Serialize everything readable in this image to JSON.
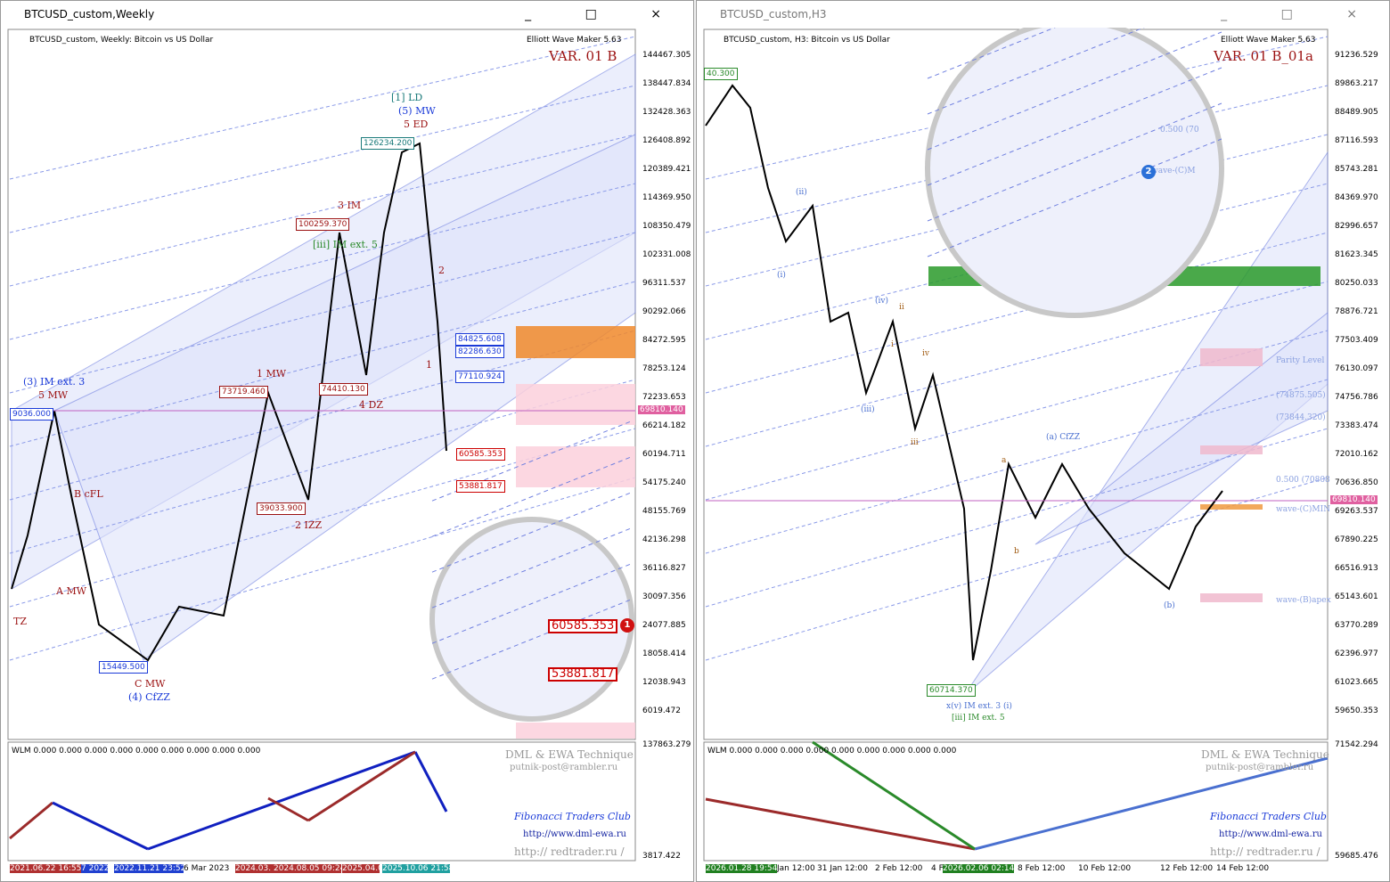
{
  "windows": [
    {
      "title": "BTCUSD_custom,Weekly",
      "header": "BTCUSD_custom, Weekly:  Bitcoin vs US Dollar",
      "tool": "Elliott Wave Maker 5.63",
      "variant": "VAR. 01 B",
      "price_axis": [
        "144467.305",
        "138447.834",
        "132428.363",
        "126408.892",
        "120389.421",
        "114369.950",
        "108350.479",
        "102331.008",
        "96311.537",
        "90292.066",
        "84272.595",
        "78253.124",
        "72233.653",
        "66214.182",
        "60194.711",
        "54175.240",
        "48155.769",
        "42136.298",
        "36116.827",
        "30097.356",
        "24077.885",
        "18058.414",
        "12038.943",
        "6019.472"
      ],
      "current_price": "69810.140",
      "indicator_text": "WLM 0.000 0.000 0.000 0.000 0.000 0.000 0.000 0.000 0.000",
      "indicator_axis": [
        "137863.279",
        "3817.422"
      ],
      "credits": [
        "DML & EWA Technique",
        "putnik-post@rambler.ru",
        "Fibonacci    Traders    Club",
        "http://www.dml-ewa.ru",
        "http://  redtrader.ru  /"
      ],
      "time_axis": [
        "2021.06.22 16:55",
        "7 2022",
        "2022.11.21 23:52",
        "6 Mar 2023",
        "2024.03.",
        "2024.08.05 09:24",
        "2025.04.07",
        "2025.10.06 21:58"
      ],
      "wave_labels": [
        "[1] LD",
        "(5) MW",
        "5 ED",
        "3 IM",
        "[iii] IM ext. 5",
        "1 MW",
        "4 DZ",
        "2 IZZ",
        "(3) IM ext. 3",
        "5 MW",
        "B cFL",
        "A MW",
        "TZ",
        "C MW",
        "(4) CfZZ",
        "2",
        "1"
      ],
      "price_boxes": [
        "126234.200",
        "100259.370",
        "73719.460",
        "74410.130",
        "39033.900",
        "15449.500",
        "84825.608",
        "82286.630",
        "77110.924",
        "60585.353",
        "53881.817",
        "9036.000"
      ],
      "zoom_labels": [
        "60585.353",
        "53881.817"
      ],
      "marker": "1"
    },
    {
      "title": "BTCUSD_custom,H3",
      "header": "BTCUSD_custom, H3:  Bitcoin vs US Dollar",
      "tool": "Elliott Wave Maker 5.63",
      "variant": "VAR. 01 B_01a",
      "price_axis": [
        "91236.529",
        "89863.217",
        "88489.905",
        "87116.593",
        "85743.281",
        "84369.970",
        "82996.657",
        "81623.345",
        "80250.033",
        "78876.721",
        "77503.409",
        "76130.097",
        "74756.786",
        "73383.474",
        "72010.162",
        "70636.850",
        "69263.537",
        "67890.225",
        "66516.913",
        "65143.601",
        "63770.289",
        "62396.977",
        "61023.665",
        "59650.353"
      ],
      "current_price": "69810.140",
      "indicator_text": "WLM 0.000 0.000 0.000 0.000 0.000 0.000 0.000 0.000 0.000",
      "indicator_axis": [
        "71542.294",
        "59685.476"
      ],
      "credits": [
        "DML & EWA Technique",
        "putnik-post@rambler.ru",
        "Fibonacci    Traders    Club",
        "http://www.dml-ewa.ru",
        "http://  redtrader.ru  /"
      ],
      "time_axis": [
        "2026.01.28 19:54",
        "Jan 12:00",
        "31 Jan 12:00",
        "2 Feb 12:00",
        "4 F",
        "2026.02.06 02:14",
        "8 Feb 12:00",
        "10 Feb 12:00",
        "12 Feb 12:00",
        "14 Feb 12:00"
      ],
      "wave_labels": [
        "(ii)",
        "(i)",
        "(iv)",
        "(iii)",
        "iii",
        "iv",
        "ii",
        "i",
        "(a) CfZZ",
        "a",
        "b",
        "(b)",
        "x(v) IM ext. 3 (i)",
        "[iii] IM ext. 5",
        "Parity Level",
        "(74875.505)",
        "(73844.320)",
        "0.500 (70808",
        "wave-(C)MIN",
        "wave-(B)apex",
        "0.500 (70",
        "wave-(C)M"
      ],
      "price_boxes": [
        "40.300",
        "60714.370"
      ],
      "zoom_labels": [],
      "marker": "2"
    }
  ]
}
